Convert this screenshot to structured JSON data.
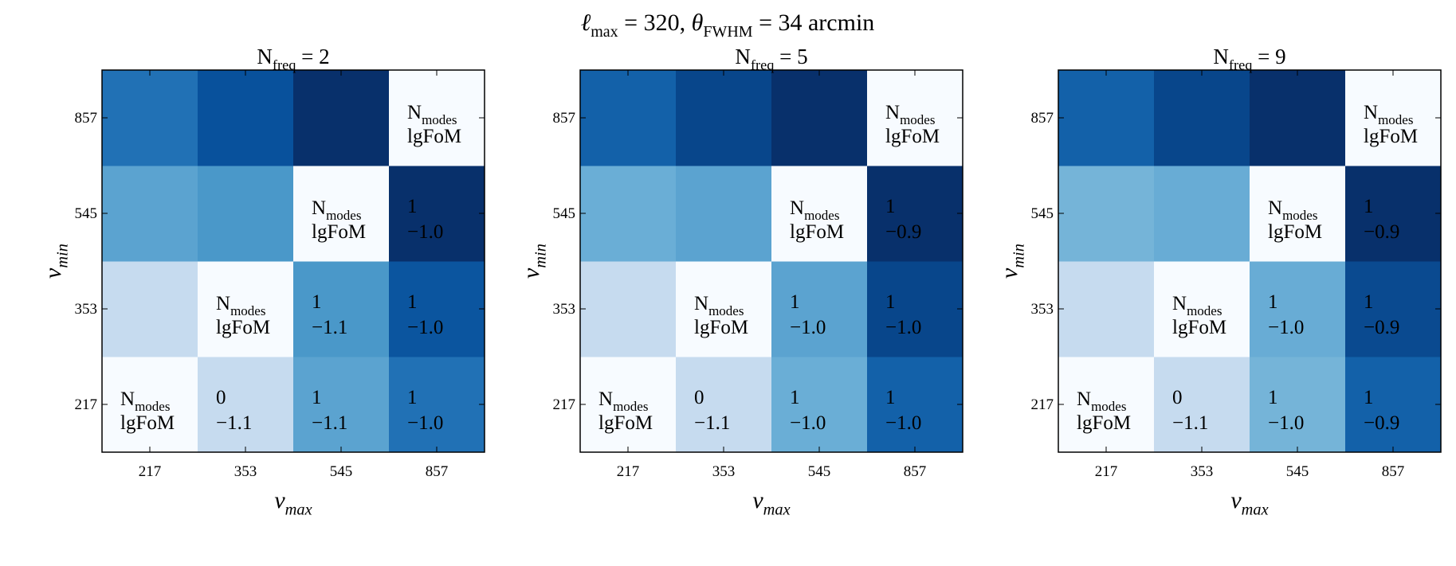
{
  "title": [
    {
      "text": "ℓ",
      "italic": true,
      "sub": "max"
    },
    {
      "text": " = 320,  "
    },
    {
      "text": "θ",
      "italic": true,
      "sub": "FWHM"
    },
    {
      "text": " = 34 arcmin"
    }
  ],
  "chart_data": [
    {
      "type": "heatmap",
      "title": {
        "base": "N",
        "sub": "freq",
        "rest": " = 2"
      },
      "x_label": {
        "base": "ν",
        "sub": "max"
      },
      "y_label": {
        "base": "ν",
        "sub": "min"
      },
      "x_categories": [
        "217",
        "353",
        "545",
        "857"
      ],
      "y_categories": [
        "217",
        "353",
        "545",
        "857"
      ],
      "cell_label": {
        "base": "N",
        "sub": "modes",
        "line2": "lgFoM"
      },
      "colors": [
        [
          "#f7fbff",
          "#c6dbef",
          "#5ba3d0",
          "#2171b5"
        ],
        [
          "#c6dbef",
          "#f7fbff",
          "#4a98c9",
          "#0b559f"
        ],
        [
          "#5ba3d0",
          "#4a98c9",
          "#f7fbff",
          "#08306b"
        ],
        [
          "#2171b5",
          "#08519c",
          "#08306b",
          "#f7fbff"
        ]
      ],
      "n_modes": [
        [
          null,
          0,
          1,
          1
        ],
        [
          null,
          null,
          1,
          1
        ],
        [
          null,
          null,
          null,
          1
        ],
        [
          null,
          null,
          null,
          null
        ]
      ],
      "lgfom": [
        [
          null,
          -1.1,
          -1.1,
          -1.0
        ],
        [
          null,
          null,
          -1.1,
          -1.0
        ],
        [
          null,
          null,
          null,
          -1.0
        ],
        [
          null,
          null,
          null,
          null
        ]
      ],
      "lgfom_labels": [
        [
          null,
          "−1.1",
          "−1.1",
          "−1.0"
        ],
        [
          null,
          null,
          "−1.1",
          "−1.0"
        ],
        [
          null,
          null,
          null,
          "−1.0"
        ],
        [
          null,
          null,
          null,
          null
        ]
      ]
    },
    {
      "type": "heatmap",
      "title": {
        "base": "N",
        "sub": "freq",
        "rest": " = 5"
      },
      "x_label": {
        "base": "ν",
        "sub": "max"
      },
      "y_label": {
        "base": "ν",
        "sub": "min"
      },
      "x_categories": [
        "217",
        "353",
        "545",
        "857"
      ],
      "y_categories": [
        "217",
        "353",
        "545",
        "857"
      ],
      "cell_label": {
        "base": "N",
        "sub": "modes",
        "line2": "lgFoM"
      },
      "colors": [
        [
          "#f7fbff",
          "#c6dbef",
          "#6aaed6",
          "#1361a9"
        ],
        [
          "#c6dbef",
          "#f7fbff",
          "#5ba3d0",
          "#08468b"
        ],
        [
          "#6aaed6",
          "#5ba3d0",
          "#f7fbff",
          "#08306b"
        ],
        [
          "#1361a9",
          "#08468b",
          "#08306b",
          "#f7fbff"
        ]
      ],
      "n_modes": [
        [
          null,
          0,
          1,
          1
        ],
        [
          null,
          null,
          1,
          1
        ],
        [
          null,
          null,
          null,
          1
        ],
        [
          null,
          null,
          null,
          null
        ]
      ],
      "lgfom": [
        [
          null,
          -1.1,
          -1.0,
          -1.0
        ],
        [
          null,
          null,
          -1.0,
          -1.0
        ],
        [
          null,
          null,
          null,
          -0.9
        ],
        [
          null,
          null,
          null,
          null
        ]
      ],
      "lgfom_labels": [
        [
          null,
          "−1.1",
          "−1.0",
          "−1.0"
        ],
        [
          null,
          null,
          "−1.0",
          "−1.0"
        ],
        [
          null,
          null,
          null,
          "−0.9"
        ],
        [
          null,
          null,
          null,
          null
        ]
      ]
    },
    {
      "type": "heatmap",
      "title": {
        "base": "N",
        "sub": "freq",
        "rest": " = 9"
      },
      "x_label": {
        "base": "ν",
        "sub": "max"
      },
      "y_label": {
        "base": "ν",
        "sub": "min"
      },
      "x_categories": [
        "217",
        "353",
        "545",
        "857"
      ],
      "y_categories": [
        "217",
        "353",
        "545",
        "857"
      ],
      "cell_label": {
        "base": "N",
        "sub": "modes",
        "line2": "lgFoM"
      },
      "colors": [
        [
          "#f7fbff",
          "#c6dbef",
          "#75b4d8",
          "#1361a9"
        ],
        [
          "#c6dbef",
          "#f7fbff",
          "#68acd5",
          "#0a4a90"
        ],
        [
          "#75b4d8",
          "#68acd5",
          "#f7fbff",
          "#08306b"
        ],
        [
          "#1361a9",
          "#08468b",
          "#08306b",
          "#f7fbff"
        ]
      ],
      "n_modes": [
        [
          null,
          0,
          1,
          1
        ],
        [
          null,
          null,
          1,
          1
        ],
        [
          null,
          null,
          null,
          1
        ],
        [
          null,
          null,
          null,
          null
        ]
      ],
      "lgfom": [
        [
          null,
          -1.1,
          -1.0,
          -0.9
        ],
        [
          null,
          null,
          -1.0,
          -0.9
        ],
        [
          null,
          null,
          null,
          -0.9
        ],
        [
          null,
          null,
          null,
          null
        ]
      ],
      "lgfom_labels": [
        [
          null,
          "−1.1",
          "−1.0",
          "−0.9"
        ],
        [
          null,
          null,
          "−1.0",
          "−0.9"
        ],
        [
          null,
          null,
          null,
          "−0.9"
        ],
        [
          null,
          null,
          null,
          null
        ]
      ]
    }
  ]
}
